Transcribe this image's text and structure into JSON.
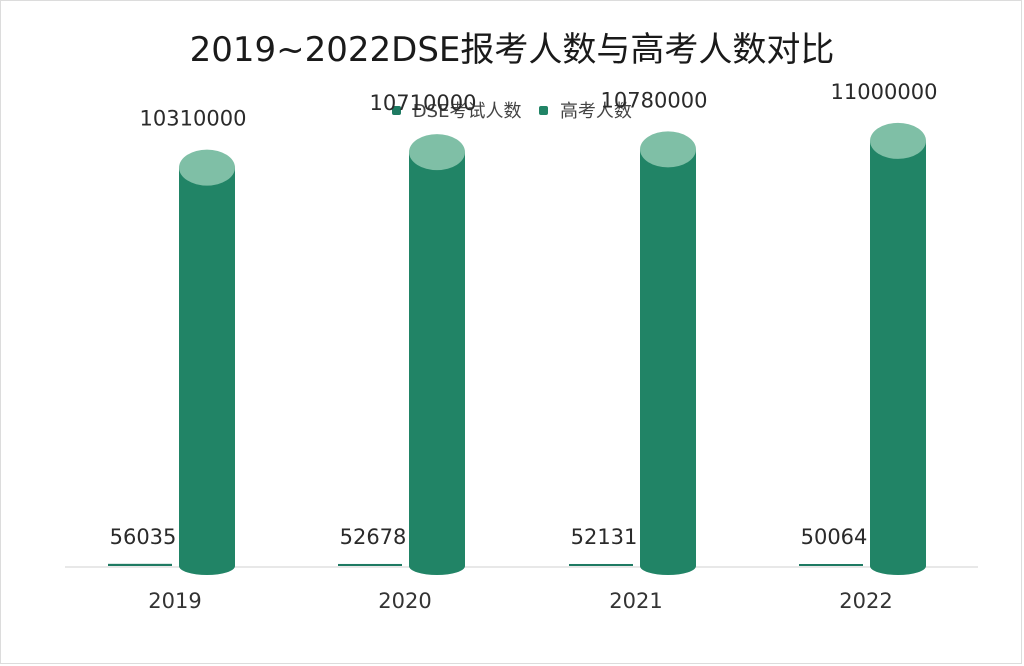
{
  "chart_data": {
    "type": "bar",
    "title": "2019~2022DSE报考人数与高考人数对比",
    "categories": [
      "2019",
      "2020",
      "2021",
      "2022"
    ],
    "series": [
      {
        "name": "DSE考试人数",
        "values": [
          56035,
          52678,
          52131,
          50064
        ],
        "color": "#1e7a62",
        "labels": [
          "56035",
          "52678",
          "52131",
          "50064"
        ]
      },
      {
        "name": "高考人数",
        "values": [
          10310000,
          10710000,
          10780000,
          11000000
        ],
        "color": "#218466",
        "labels": [
          "10310000",
          "10710000",
          "10780000",
          "11000000"
        ]
      }
    ],
    "legend_position": "top",
    "grid": false
  }
}
